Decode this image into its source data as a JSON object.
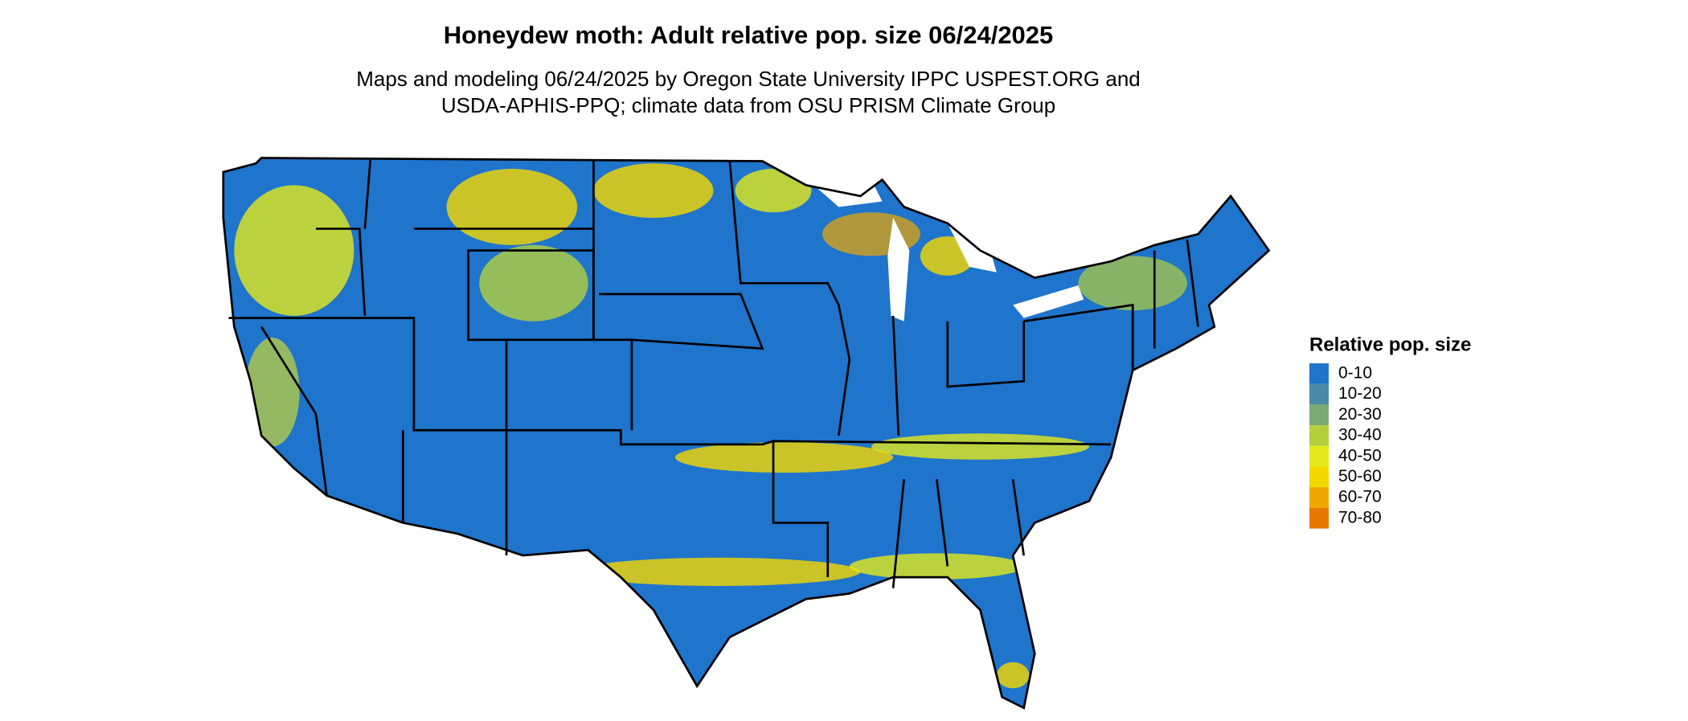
{
  "header": {
    "title": "Honeydew moth: Adult relative pop. size 06/24/2025",
    "subtitle": [
      "Maps and modeling 06/24/2025 by Oregon State University IPPC USPEST.ORG and",
      "USDA-APHIS-PPQ; climate data from OSU PRISM Climate Group"
    ]
  },
  "legend": {
    "title": "Relative pop. size",
    "items": [
      {
        "label": "0-10",
        "color": "#1f74cc"
      },
      {
        "label": "10-20",
        "color": "#4a8aa8"
      },
      {
        "label": "20-30",
        "color": "#7aab72"
      },
      {
        "label": "30-40",
        "color": "#b3cf3c"
      },
      {
        "label": "40-50",
        "color": "#e3e81a"
      },
      {
        "label": "50-60",
        "color": "#f5d800"
      },
      {
        "label": "60-70",
        "color": "#f0a800"
      },
      {
        "label": "70-80",
        "color": "#e87800"
      }
    ]
  }
}
